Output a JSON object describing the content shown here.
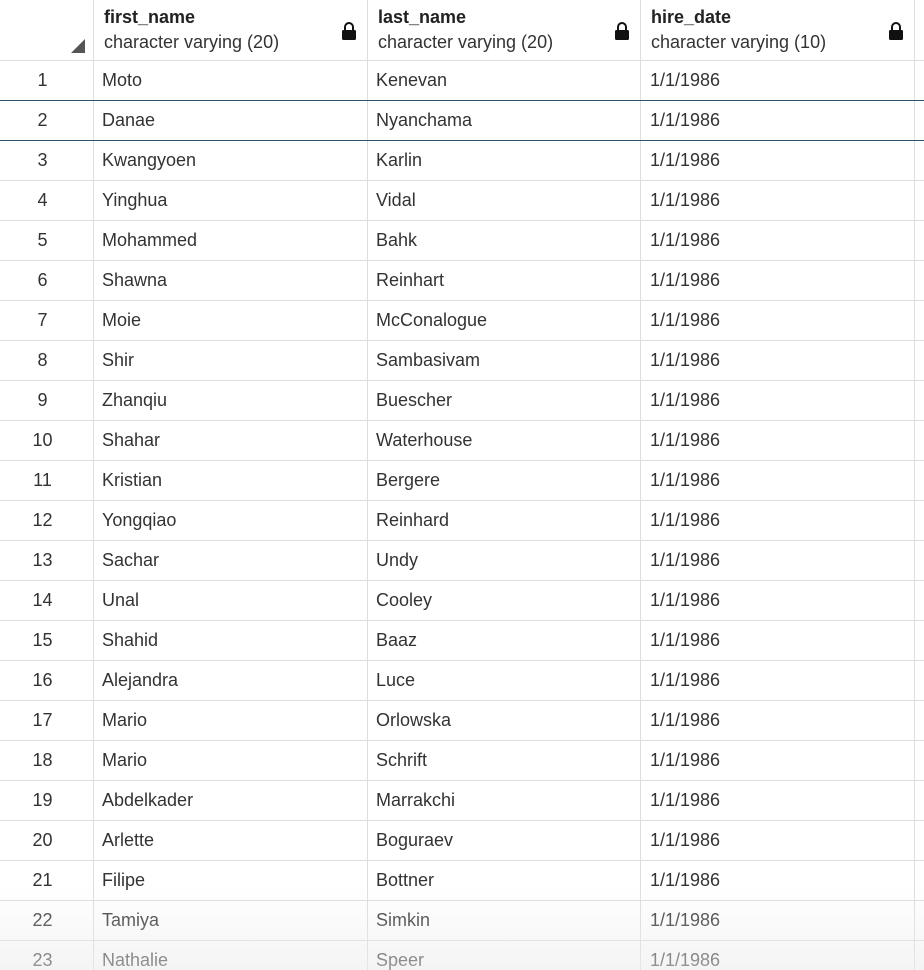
{
  "columns": [
    {
      "name": "first_name",
      "type": "character varying (20)",
      "icon": "lock-icon"
    },
    {
      "name": "last_name",
      "type": "character varying (20)",
      "icon": "lock-icon"
    },
    {
      "name": "hire_date",
      "type": "character varying (10)",
      "icon": "lock-icon"
    }
  ],
  "rows": [
    {
      "num": "1",
      "first_name": "Moto",
      "last_name": "Kenevan",
      "hire_date": "1/1/1986"
    },
    {
      "num": "2",
      "first_name": "Danae",
      "last_name": "Nyanchama",
      "hire_date": "1/1/1986"
    },
    {
      "num": "3",
      "first_name": "Kwangyoen",
      "last_name": "Karlin",
      "hire_date": "1/1/1986"
    },
    {
      "num": "4",
      "first_name": "Yinghua",
      "last_name": "Vidal",
      "hire_date": "1/1/1986"
    },
    {
      "num": "5",
      "first_name": "Mohammed",
      "last_name": "Bahk",
      "hire_date": "1/1/1986"
    },
    {
      "num": "6",
      "first_name": "Shawna",
      "last_name": "Reinhart",
      "hire_date": "1/1/1986"
    },
    {
      "num": "7",
      "first_name": "Moie",
      "last_name": "McConalogue",
      "hire_date": "1/1/1986"
    },
    {
      "num": "8",
      "first_name": "Shir",
      "last_name": "Sambasivam",
      "hire_date": "1/1/1986"
    },
    {
      "num": "9",
      "first_name": "Zhanqiu",
      "last_name": "Buescher",
      "hire_date": "1/1/1986"
    },
    {
      "num": "10",
      "first_name": "Shahar",
      "last_name": "Waterhouse",
      "hire_date": "1/1/1986"
    },
    {
      "num": "11",
      "first_name": "Kristian",
      "last_name": "Bergere",
      "hire_date": "1/1/1986"
    },
    {
      "num": "12",
      "first_name": "Yongqiao",
      "last_name": "Reinhard",
      "hire_date": "1/1/1986"
    },
    {
      "num": "13",
      "first_name": "Sachar",
      "last_name": "Undy",
      "hire_date": "1/1/1986"
    },
    {
      "num": "14",
      "first_name": "Unal",
      "last_name": "Cooley",
      "hire_date": "1/1/1986"
    },
    {
      "num": "15",
      "first_name": "Shahid",
      "last_name": "Baaz",
      "hire_date": "1/1/1986"
    },
    {
      "num": "16",
      "first_name": "Alejandra",
      "last_name": "Luce",
      "hire_date": "1/1/1986"
    },
    {
      "num": "17",
      "first_name": "Mario",
      "last_name": "Orlowska",
      "hire_date": "1/1/1986"
    },
    {
      "num": "18",
      "first_name": "Mario",
      "last_name": "Schrift",
      "hire_date": "1/1/1986"
    },
    {
      "num": "19",
      "first_name": "Abdelkader",
      "last_name": "Marrakchi",
      "hire_date": "1/1/1986"
    },
    {
      "num": "20",
      "first_name": "Arlette",
      "last_name": "Boguraev",
      "hire_date": "1/1/1986"
    },
    {
      "num": "21",
      "first_name": "Filipe",
      "last_name": "Bottner",
      "hire_date": "1/1/1986"
    },
    {
      "num": "22",
      "first_name": "Tamiya",
      "last_name": "Simkin",
      "hire_date": "1/1/1986"
    },
    {
      "num": "23",
      "first_name": "Nathalie",
      "last_name": "Speer",
      "hire_date": "1/1/1986"
    }
  ],
  "selected_row": "2"
}
